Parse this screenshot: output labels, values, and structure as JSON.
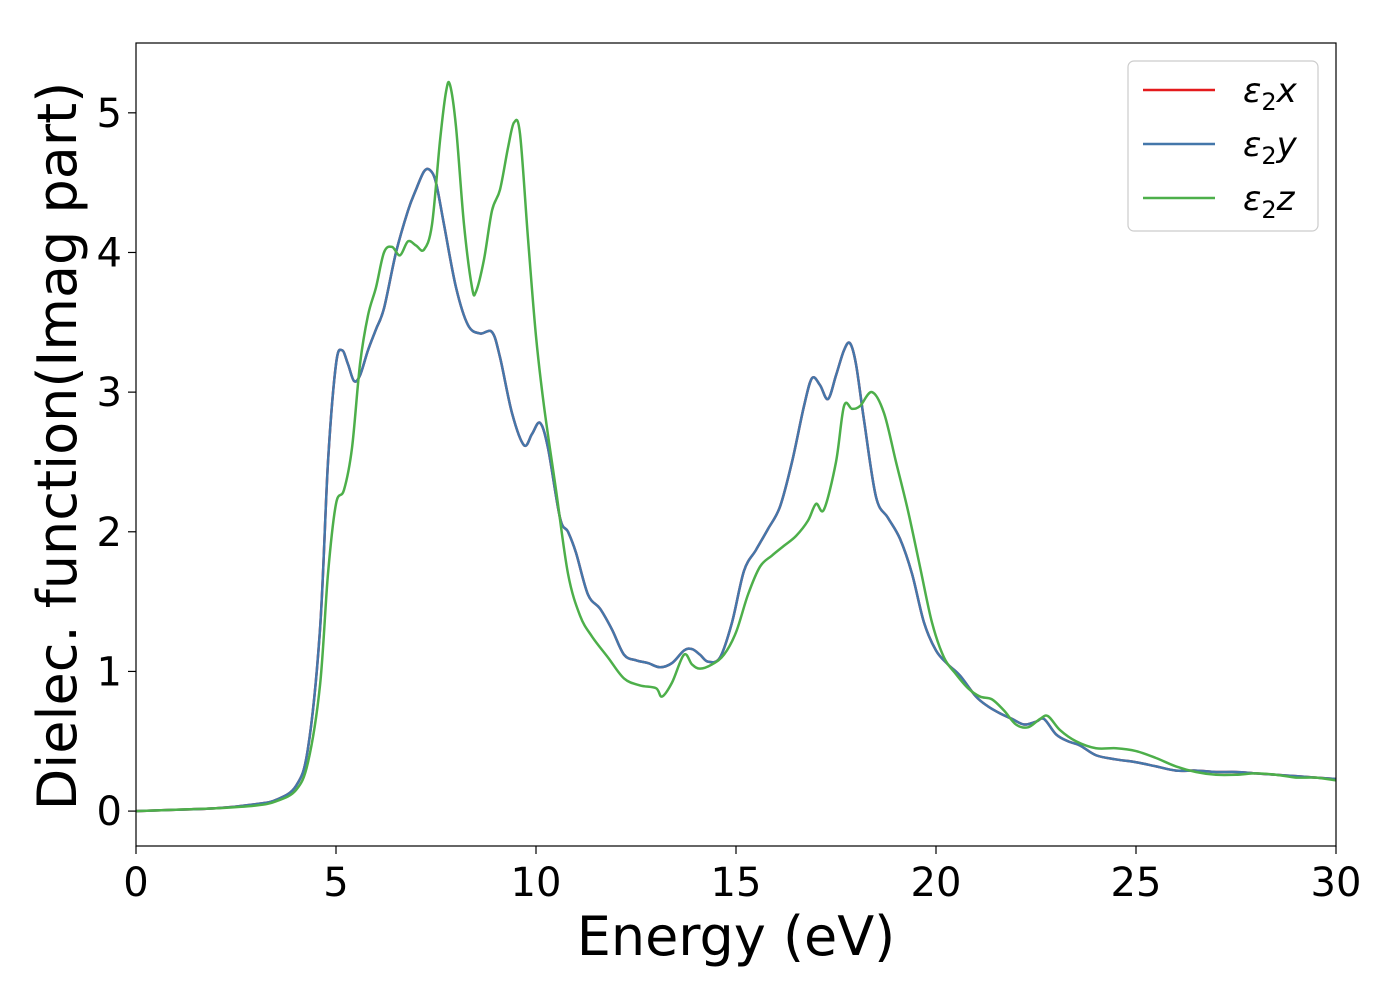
{
  "chart_data": {
    "type": "line",
    "xlabel": "Energy (eV)",
    "ylabel": "Dielec. function(Imag part)",
    "xlim": [
      0,
      30
    ],
    "ylim": [
      -0.25,
      5.5
    ],
    "xticks": [
      0,
      5,
      10,
      15,
      20,
      25,
      30
    ],
    "yticks": [
      0,
      1,
      2,
      3,
      4,
      5
    ],
    "grid": false,
    "legend_position": "top-right",
    "series": [
      {
        "name": "ε₂x",
        "label_base": "ε",
        "label_sub": "2",
        "label_axis": "x",
        "color": "#e41a1c",
        "x": [
          0,
          1,
          2,
          3,
          3.5,
          4,
          4.3,
          4.6,
          4.8,
          5.0,
          5.15,
          5.3,
          5.45,
          5.6,
          5.8,
          6.0,
          6.2,
          6.5,
          6.8,
          7.0,
          7.2,
          7.35,
          7.5,
          7.7,
          8.0,
          8.3,
          8.6,
          8.9,
          9.1,
          9.4,
          9.7,
          9.9,
          10.1,
          10.3,
          10.6,
          10.8,
          11.0,
          11.3,
          11.6,
          11.9,
          12.2,
          12.5,
          12.8,
          13.1,
          13.4,
          13.7,
          13.9,
          14.1,
          14.3,
          14.6,
          14.9,
          15.2,
          15.5,
          15.8,
          16.1,
          16.4,
          16.7,
          16.9,
          17.1,
          17.3,
          17.5,
          17.7,
          17.85,
          18.0,
          18.2,
          18.5,
          18.8,
          19.1,
          19.4,
          19.7,
          20.0,
          20.3,
          20.6,
          21.0,
          21.3,
          21.6,
          21.9,
          22.2,
          22.5,
          22.7,
          23.0,
          23.3,
          23.6,
          24.0,
          24.5,
          25.0,
          25.5,
          26.0,
          26.5,
          27.0,
          27.5,
          28.0,
          28.5,
          29.0,
          29.5,
          30.0
        ],
        "values": [
          0.0,
          0.01,
          0.02,
          0.05,
          0.08,
          0.18,
          0.45,
          1.3,
          2.5,
          3.2,
          3.3,
          3.2,
          3.08,
          3.12,
          3.3,
          3.45,
          3.6,
          4.0,
          4.3,
          4.45,
          4.58,
          4.59,
          4.5,
          4.2,
          3.75,
          3.48,
          3.42,
          3.43,
          3.25,
          2.85,
          2.62,
          2.7,
          2.78,
          2.6,
          2.1,
          2.0,
          1.85,
          1.55,
          1.45,
          1.3,
          1.12,
          1.08,
          1.06,
          1.03,
          1.06,
          1.15,
          1.16,
          1.12,
          1.07,
          1.1,
          1.35,
          1.72,
          1.87,
          2.02,
          2.18,
          2.5,
          2.9,
          3.1,
          3.05,
          2.95,
          3.12,
          3.3,
          3.35,
          3.2,
          2.8,
          2.25,
          2.1,
          1.95,
          1.7,
          1.35,
          1.15,
          1.05,
          0.97,
          0.82,
          0.75,
          0.7,
          0.66,
          0.62,
          0.64,
          0.66,
          0.55,
          0.5,
          0.47,
          0.4,
          0.37,
          0.35,
          0.32,
          0.29,
          0.29,
          0.28,
          0.28,
          0.27,
          0.26,
          0.25,
          0.24,
          0.23
        ]
      },
      {
        "name": "ε₂y",
        "label_base": "ε",
        "label_sub": "2",
        "label_axis": "y",
        "color": "#4477aa",
        "x": [
          0,
          1,
          2,
          3,
          3.5,
          4,
          4.3,
          4.6,
          4.8,
          5.0,
          5.15,
          5.3,
          5.45,
          5.6,
          5.8,
          6.0,
          6.2,
          6.5,
          6.8,
          7.0,
          7.2,
          7.35,
          7.5,
          7.7,
          8.0,
          8.3,
          8.6,
          8.9,
          9.1,
          9.4,
          9.7,
          9.9,
          10.1,
          10.3,
          10.6,
          10.8,
          11.0,
          11.3,
          11.6,
          11.9,
          12.2,
          12.5,
          12.8,
          13.1,
          13.4,
          13.7,
          13.9,
          14.1,
          14.3,
          14.6,
          14.9,
          15.2,
          15.5,
          15.8,
          16.1,
          16.4,
          16.7,
          16.9,
          17.1,
          17.3,
          17.5,
          17.7,
          17.85,
          18.0,
          18.2,
          18.5,
          18.8,
          19.1,
          19.4,
          19.7,
          20.0,
          20.3,
          20.6,
          21.0,
          21.3,
          21.6,
          21.9,
          22.2,
          22.5,
          22.7,
          23.0,
          23.3,
          23.6,
          24.0,
          24.5,
          25.0,
          25.5,
          26.0,
          26.5,
          27.0,
          27.5,
          28.0,
          28.5,
          29.0,
          29.5,
          30.0
        ],
        "values": [
          0.0,
          0.01,
          0.02,
          0.05,
          0.08,
          0.18,
          0.45,
          1.3,
          2.5,
          3.2,
          3.3,
          3.2,
          3.08,
          3.12,
          3.3,
          3.45,
          3.6,
          4.0,
          4.3,
          4.45,
          4.58,
          4.59,
          4.5,
          4.2,
          3.75,
          3.48,
          3.42,
          3.43,
          3.25,
          2.85,
          2.62,
          2.7,
          2.78,
          2.6,
          2.1,
          2.0,
          1.85,
          1.55,
          1.45,
          1.3,
          1.12,
          1.08,
          1.06,
          1.03,
          1.06,
          1.15,
          1.16,
          1.12,
          1.07,
          1.1,
          1.35,
          1.72,
          1.87,
          2.02,
          2.18,
          2.5,
          2.9,
          3.1,
          3.05,
          2.95,
          3.12,
          3.3,
          3.35,
          3.2,
          2.8,
          2.25,
          2.1,
          1.95,
          1.7,
          1.35,
          1.15,
          1.05,
          0.97,
          0.82,
          0.75,
          0.7,
          0.66,
          0.62,
          0.64,
          0.66,
          0.55,
          0.5,
          0.47,
          0.4,
          0.37,
          0.35,
          0.32,
          0.29,
          0.29,
          0.28,
          0.28,
          0.27,
          0.26,
          0.25,
          0.24,
          0.23
        ]
      },
      {
        "name": "ε₂z",
        "label_base": "ε",
        "label_sub": "2",
        "label_axis": "z",
        "color": "#4daf4a",
        "x": [
          0,
          1,
          2,
          3,
          3.5,
          4,
          4.3,
          4.6,
          4.8,
          5.0,
          5.2,
          5.4,
          5.6,
          5.8,
          6.0,
          6.2,
          6.4,
          6.6,
          6.8,
          7.0,
          7.2,
          7.4,
          7.6,
          7.75,
          7.85,
          8.0,
          8.2,
          8.4,
          8.5,
          8.7,
          8.9,
          9.1,
          9.3,
          9.45,
          9.6,
          9.8,
          10.0,
          10.2,
          10.5,
          10.8,
          11.1,
          11.4,
          11.8,
          12.2,
          12.6,
          13.0,
          13.15,
          13.4,
          13.7,
          13.9,
          14.1,
          14.4,
          14.7,
          15.0,
          15.3,
          15.6,
          15.9,
          16.2,
          16.5,
          16.8,
          17.0,
          17.2,
          17.5,
          17.7,
          17.9,
          18.1,
          18.4,
          18.7,
          19.0,
          19.3,
          19.6,
          19.9,
          20.2,
          20.5,
          20.8,
          21.1,
          21.4,
          21.7,
          22.0,
          22.3,
          22.6,
          22.8,
          23.1,
          23.5,
          24.0,
          24.5,
          25.0,
          25.5,
          26.0,
          26.5,
          27.0,
          27.5,
          28.0,
          28.5,
          29.0,
          29.5,
          30.0
        ],
        "values": [
          0.0,
          0.01,
          0.02,
          0.04,
          0.07,
          0.15,
          0.35,
          0.9,
          1.7,
          2.2,
          2.3,
          2.6,
          3.2,
          3.55,
          3.75,
          4.0,
          4.04,
          3.98,
          4.08,
          4.05,
          4.02,
          4.2,
          4.8,
          5.15,
          5.2,
          4.9,
          4.2,
          3.75,
          3.72,
          3.95,
          4.3,
          4.45,
          4.75,
          4.93,
          4.85,
          4.1,
          3.4,
          2.9,
          2.3,
          1.7,
          1.4,
          1.25,
          1.1,
          0.95,
          0.9,
          0.88,
          0.82,
          0.92,
          1.12,
          1.05,
          1.02,
          1.05,
          1.12,
          1.28,
          1.55,
          1.75,
          1.83,
          1.9,
          1.97,
          2.08,
          2.2,
          2.16,
          2.5,
          2.9,
          2.88,
          2.9,
          3.0,
          2.85,
          2.5,
          2.15,
          1.75,
          1.35,
          1.1,
          0.98,
          0.88,
          0.82,
          0.8,
          0.72,
          0.62,
          0.6,
          0.66,
          0.68,
          0.58,
          0.5,
          0.45,
          0.45,
          0.43,
          0.38,
          0.32,
          0.28,
          0.26,
          0.26,
          0.27,
          0.26,
          0.24,
          0.24,
          0.22
        ]
      }
    ]
  }
}
